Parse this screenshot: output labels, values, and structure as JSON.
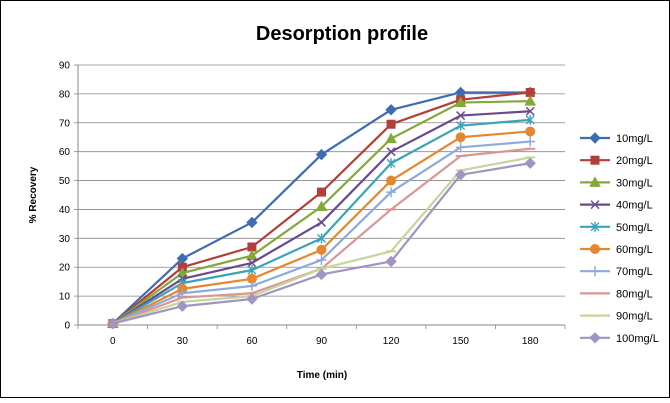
{
  "chart_data": {
    "type": "line",
    "title": "Desorption profile",
    "xlabel": "Time (min)",
    "ylabel": "% Recovery",
    "x": [
      0,
      30,
      60,
      90,
      120,
      150,
      180
    ],
    "x_tick_labels": [
      "0",
      "30",
      "60",
      "90",
      "120",
      "150",
      "180"
    ],
    "y_tick_labels": [
      "0",
      "10",
      "20",
      "30",
      "40",
      "50",
      "60",
      "70",
      "80",
      "90"
    ],
    "ylim": [
      0,
      90
    ],
    "grid": "horizontal",
    "legend_position": "right",
    "series": [
      {
        "name": "10mg/L",
        "color": "#3F6CB0",
        "marker": "diamond",
        "values": [
          0.5,
          23,
          35.5,
          59,
          74.5,
          80.5,
          80.5
        ]
      },
      {
        "name": "20mg/L",
        "color": "#B33E3A",
        "marker": "square",
        "values": [
          0.5,
          20,
          27,
          46,
          69.5,
          78,
          80.5
        ]
      },
      {
        "name": "30mg/L",
        "color": "#84A83A",
        "marker": "triangle",
        "values": [
          0.5,
          18,
          24,
          41,
          64.5,
          77,
          77.5
        ]
      },
      {
        "name": "40mg/L",
        "color": "#6B4A8C",
        "marker": "x",
        "values": [
          0.5,
          16,
          21.5,
          35.5,
          60,
          72.5,
          74
        ]
      },
      {
        "name": "50mg/L",
        "color": "#3BA3BB",
        "marker": "star",
        "values": [
          0.5,
          14.5,
          19,
          30,
          56,
          69,
          71
        ]
      },
      {
        "name": "60mg/L",
        "color": "#E6862E",
        "marker": "circle",
        "values": [
          0.5,
          12.5,
          16,
          26,
          50,
          65,
          67
        ]
      },
      {
        "name": "70mg/L",
        "color": "#8EAADB",
        "marker": "plus",
        "values": [
          0.5,
          11,
          13.5,
          22.5,
          46,
          61.5,
          63.5
        ]
      },
      {
        "name": "80mg/L",
        "color": "#D99694",
        "marker": "dash",
        "values": [
          0.5,
          9.5,
          11,
          19.5,
          40,
          58.5,
          61
        ]
      },
      {
        "name": "90mg/L",
        "color": "#C3D69B",
        "marker": "dash",
        "values": [
          0.5,
          8,
          10,
          19.5,
          25.5,
          53.5,
          58
        ]
      },
      {
        "name": "100mg/L",
        "color": "#A294C2",
        "marker": "diamond",
        "values": [
          0.5,
          6.5,
          9,
          17.5,
          22,
          52,
          56
        ]
      }
    ]
  }
}
